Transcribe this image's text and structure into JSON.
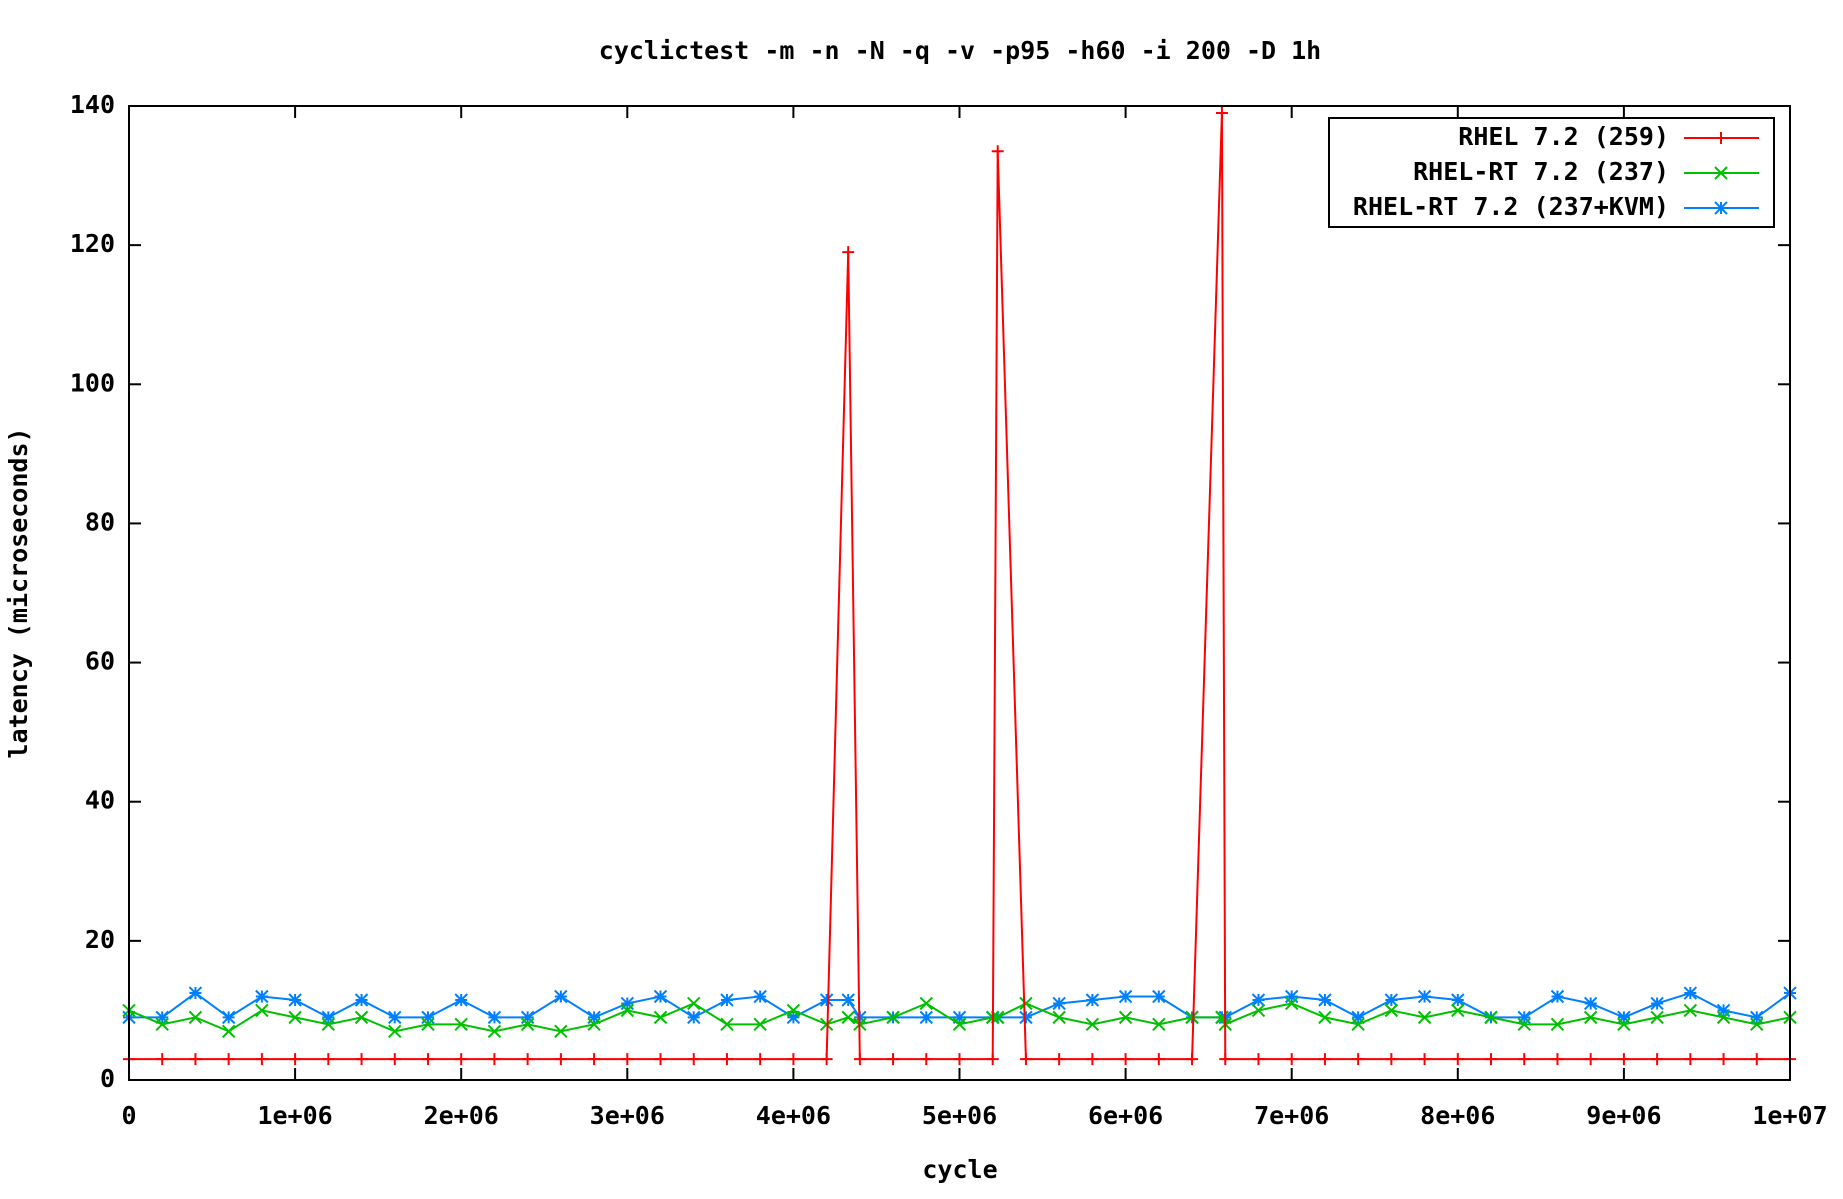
{
  "chart_data": {
    "type": "line",
    "title": "cyclictest -m -n -N -q -v -p95 -h60 -i 200 -D 1h",
    "x_label": "cycle",
    "y_label": "latency (microseconds)",
    "x": [
      0,
      200000,
      400000,
      600000,
      800000,
      1000000,
      1200000,
      1400000,
      1600000,
      1800000,
      2000000,
      2200000,
      2400000,
      2600000,
      2800000,
      3000000,
      3200000,
      3400000,
      3600000,
      3800000,
      4000000,
      4200000,
      4330000,
      4400000,
      4600000,
      4800000,
      5000000,
      5200000,
      5230000,
      5400000,
      5600000,
      5800000,
      6000000,
      6200000,
      6400000,
      6580000,
      6600000,
      6800000,
      7000000,
      7200000,
      7400000,
      7600000,
      7800000,
      8000000,
      8200000,
      8400000,
      8600000,
      8800000,
      9000000,
      9200000,
      9400000,
      9600000,
      9800000,
      10000000
    ],
    "series": [
      {
        "name": "RHEL 7.2 (259)",
        "color": "#ff0000",
        "marker": "plus",
        "values": [
          3,
          3,
          3,
          3,
          3,
          3,
          3,
          3,
          3,
          3,
          3,
          3,
          3,
          3,
          3,
          3,
          3,
          3,
          3,
          3,
          3,
          3,
          119,
          3,
          3,
          3,
          3,
          3,
          133.5,
          3,
          3,
          3,
          3,
          3,
          3,
          139,
          3,
          3,
          3,
          3,
          3,
          3,
          3,
          3,
          3,
          3,
          3,
          3,
          3,
          3,
          3,
          3,
          3,
          3
        ]
      },
      {
        "name": "RHEL-RT 7.2 (237)",
        "color": "#00c000",
        "marker": "cross",
        "values": [
          10,
          8,
          9,
          7,
          10,
          9,
          8,
          9,
          7,
          8,
          8,
          7,
          8,
          7,
          8,
          10,
          9,
          11,
          8,
          8,
          10,
          8,
          9,
          8,
          9,
          11,
          8,
          9,
          9,
          11,
          9,
          8,
          9,
          8,
          9,
          9,
          8,
          10,
          11,
          9,
          8,
          10,
          9,
          10,
          9,
          8,
          8,
          9,
          8,
          9,
          10,
          9,
          8,
          9
        ]
      },
      {
        "name": "RHEL-RT 7.2 (237+KVM)",
        "color": "#0080ff",
        "marker": "star",
        "values": [
          9,
          9,
          12.5,
          9,
          12,
          11.5,
          9,
          11.5,
          9,
          9,
          11.5,
          9,
          9,
          12,
          9,
          11,
          12,
          9,
          11.5,
          12,
          9,
          11.5,
          11.5,
          9,
          9,
          9,
          9,
          9,
          9,
          9,
          11,
          11.5,
          12,
          12,
          9,
          9,
          9,
          11.5,
          12,
          11.5,
          9,
          11.5,
          12,
          11.5,
          9,
          9,
          12,
          11,
          9,
          11,
          12.5,
          10,
          9,
          12.5
        ]
      }
    ],
    "xlim": [
      0,
      10000000
    ],
    "xticks": [
      0,
      {
        "value": 1000000,
        "label": "1e+06"
      },
      {
        "value": 2000000,
        "label": "2e+06"
      },
      {
        "value": 3000000,
        "label": "3e+06"
      },
      {
        "value": 4000000,
        "label": "4e+06"
      },
      {
        "value": 5000000,
        "label": "5e+06"
      },
      {
        "value": 6000000,
        "label": "6e+06"
      },
      {
        "value": 7000000,
        "label": "7e+06"
      },
      {
        "value": 8000000,
        "label": "8e+06"
      },
      {
        "value": 9000000,
        "label": "9e+06"
      },
      {
        "value": 10000000,
        "label": "1e+07"
      }
    ],
    "ylim": [
      0,
      140
    ],
    "yticks": [
      0,
      20,
      40,
      60,
      80,
      100,
      120,
      140
    ],
    "grid": false,
    "legend": "top-right"
  }
}
